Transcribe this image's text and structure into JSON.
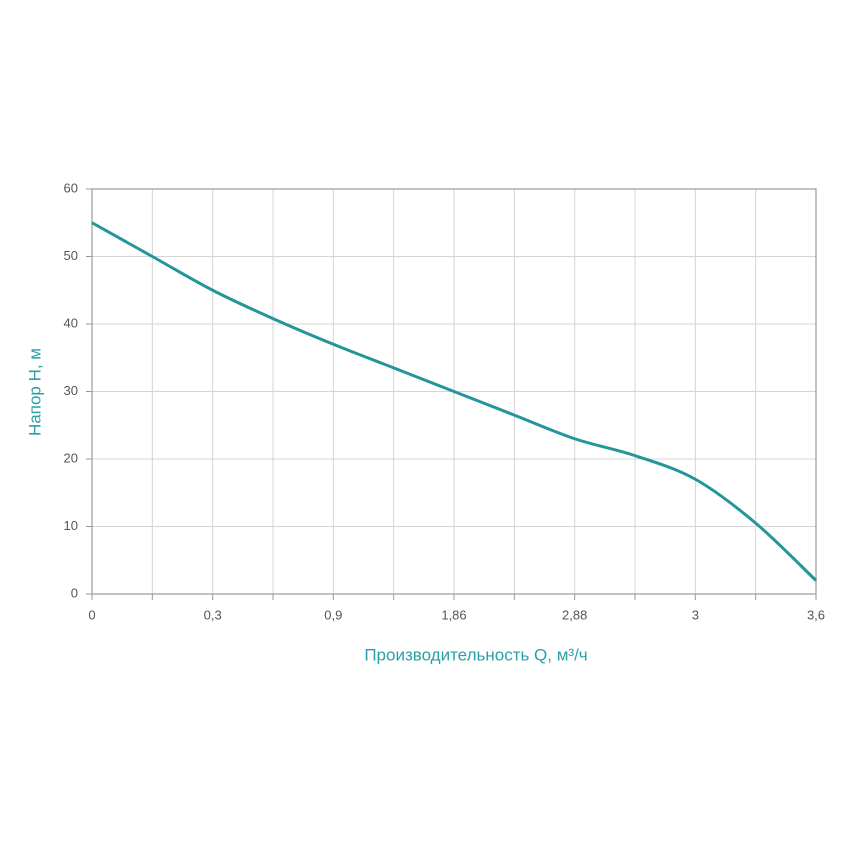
{
  "chart_data": {
    "type": "line",
    "x_label": "Производительность Q, м³/ч",
    "y_label": "Напор H, м",
    "categories": [
      "0",
      null,
      "0,3",
      null,
      "0,9",
      null,
      "1,86",
      null,
      "2,88",
      null,
      "3",
      null,
      "3,6"
    ],
    "series": [
      {
        "name": "H",
        "color": "#23959b",
        "values": [
          55,
          50,
          45,
          40.8,
          37,
          33.5,
          30,
          26.5,
          23,
          20.5,
          17,
          10.5,
          2
        ]
      }
    ],
    "ylim": [
      0,
      60
    ],
    "yticks": [
      0,
      10,
      20,
      30,
      40,
      50,
      60
    ],
    "grid": true
  }
}
